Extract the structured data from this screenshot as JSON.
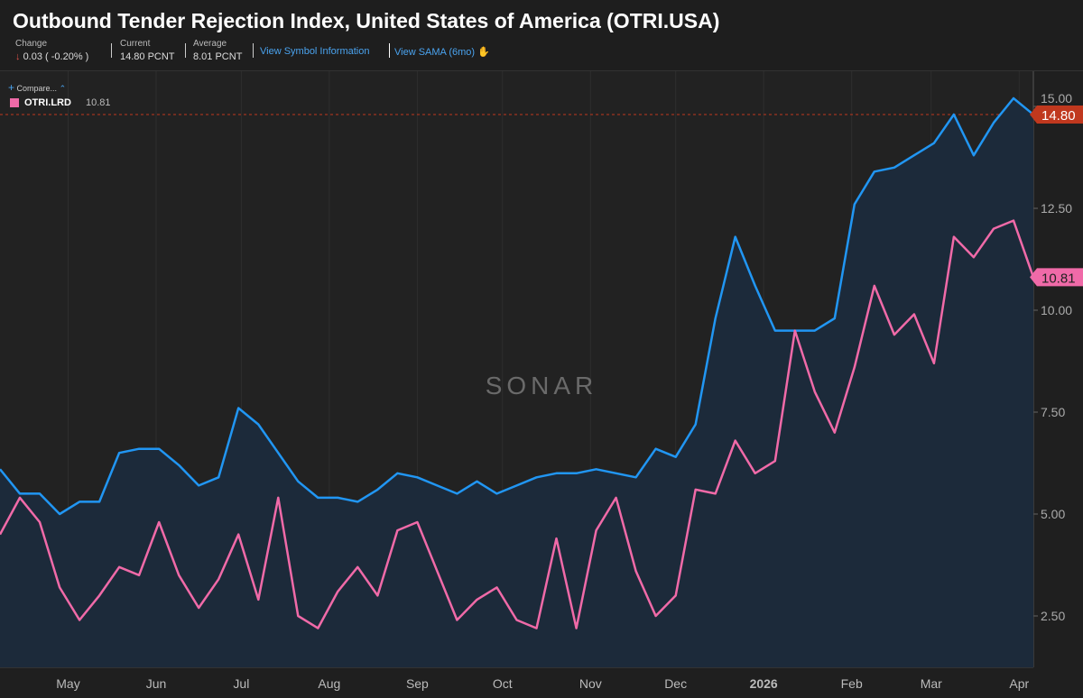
{
  "header": {
    "title": "Outbound Tender Rejection Index, United States of America (OTRI.USA)",
    "change_label": "Change",
    "change_value": "0.03 ( -0.20% )",
    "change_direction": "down",
    "current_label": "Current",
    "current_value": "14.80 PCNT",
    "average_label": "Average",
    "average_value": "8.01 PCNT",
    "symbol_link": "View Symbol Information",
    "sama_link": "View SAMA (6mo)"
  },
  "compare": {
    "label": "Compare..."
  },
  "legend": {
    "name": "OTRI.LRD",
    "value": "10.81"
  },
  "watermark": "SONAR",
  "colors": {
    "primary": "#2196f3",
    "compare": "#f06aa8",
    "current_badge": "#c0381e",
    "area": "#1c2a3a",
    "down_arrow": "#e0524a"
  },
  "chart_data": {
    "type": "line",
    "title": "Outbound Tender Rejection Index, United States of America (OTRI.USA)",
    "x_tick_labels": [
      "May",
      "Jun",
      "Jul",
      "Aug",
      "Sep",
      "Oct",
      "Nov",
      "Dec",
      "2026",
      "Feb",
      "Mar",
      "Apr"
    ],
    "x_tick_dates": [
      "2025-05-01",
      "2025-06-01",
      "2025-07-01",
      "2025-08-01",
      "2025-09-01",
      "2025-10-01",
      "2025-11-01",
      "2025-12-01",
      "2026-01-01",
      "2026-02-01",
      "2026-03-01",
      "2026-04-01"
    ],
    "y_ticks": [
      "2.50",
      "5.00",
      "7.50",
      "10.00",
      "12.50",
      "15.00"
    ],
    "ylim": [
      1.2,
      15.9
    ],
    "xlim": [
      "2025-04-07",
      "2026-04-06"
    ],
    "grid": "vertical",
    "x": [
      "2025-04-07",
      "2025-04-14",
      "2025-04-21",
      "2025-04-28",
      "2025-05-05",
      "2025-05-12",
      "2025-05-19",
      "2025-05-26",
      "2025-06-02",
      "2025-06-09",
      "2025-06-16",
      "2025-06-23",
      "2025-06-30",
      "2025-07-07",
      "2025-07-14",
      "2025-07-21",
      "2025-07-28",
      "2025-08-04",
      "2025-08-11",
      "2025-08-18",
      "2025-08-25",
      "2025-09-01",
      "2025-09-08",
      "2025-09-15",
      "2025-09-22",
      "2025-09-29",
      "2025-10-06",
      "2025-10-13",
      "2025-10-20",
      "2025-10-27",
      "2025-11-03",
      "2025-11-10",
      "2025-11-17",
      "2025-11-24",
      "2025-12-01",
      "2025-12-08",
      "2025-12-15",
      "2025-12-22",
      "2025-12-29",
      "2026-01-05",
      "2026-01-12",
      "2026-01-19",
      "2026-01-26",
      "2026-02-02",
      "2026-02-09",
      "2026-02-16",
      "2026-02-23",
      "2026-03-02",
      "2026-03-09",
      "2026-03-16",
      "2026-03-23",
      "2026-03-30",
      "2026-04-06"
    ],
    "series": [
      {
        "name": "OTRI.USA",
        "color": "#2196f3",
        "area": true,
        "last_label": "14.80",
        "values": [
          6.1,
          5.5,
          5.5,
          5.0,
          5.3,
          5.3,
          6.5,
          6.6,
          6.6,
          6.2,
          5.7,
          5.9,
          7.6,
          7.2,
          6.5,
          5.8,
          5.4,
          5.4,
          5.3,
          5.6,
          6.0,
          5.9,
          5.7,
          5.5,
          5.8,
          5.5,
          5.7,
          5.9,
          6.0,
          6.0,
          6.1,
          6.0,
          5.9,
          6.6,
          6.4,
          7.2,
          9.8,
          11.8,
          10.6,
          9.5,
          9.5,
          9.5,
          9.8,
          12.6,
          13.4,
          13.5,
          13.8,
          14.1,
          14.8,
          13.8,
          14.6,
          15.2,
          14.8
        ]
      },
      {
        "name": "OTRI.LRD",
        "color": "#f06aa8",
        "area": false,
        "last_label": "10.81",
        "values": [
          4.5,
          5.4,
          4.8,
          3.2,
          2.4,
          3.0,
          3.7,
          3.5,
          4.8,
          3.5,
          2.7,
          3.4,
          4.5,
          2.9,
          5.4,
          2.5,
          2.2,
          3.1,
          3.7,
          3.0,
          4.6,
          4.8,
          3.6,
          2.4,
          2.9,
          3.2,
          2.4,
          2.2,
          4.4,
          2.2,
          4.6,
          5.4,
          3.6,
          2.5,
          3.0,
          5.6,
          5.5,
          6.8,
          6.0,
          6.3,
          9.5,
          8.0,
          7.0,
          8.6,
          10.6,
          9.4,
          9.9,
          8.7,
          11.8,
          11.3,
          12.0,
          12.2,
          10.81
        ]
      }
    ],
    "reference_line": {
      "value": 14.8,
      "style": "dashed"
    }
  }
}
